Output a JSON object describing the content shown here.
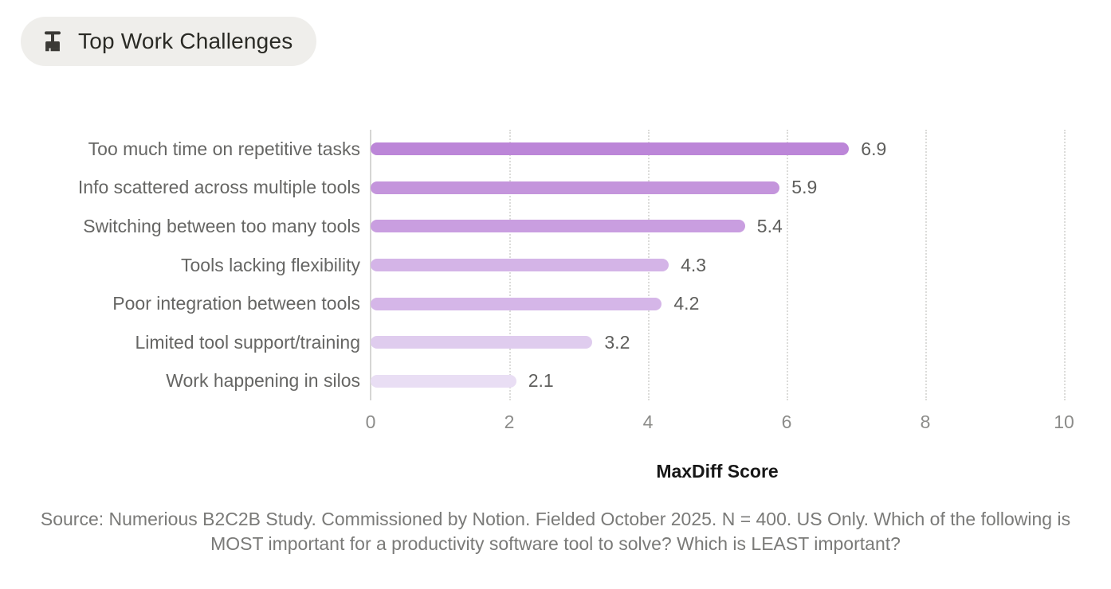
{
  "badge": {
    "label": "Top Work Challenges",
    "icon": "broom-icon"
  },
  "chart_data": {
    "type": "bar",
    "orientation": "horizontal",
    "title": "Top Work Challenges",
    "categories": [
      "Too much time on repetitive tasks",
      "Info scattered across multiple tools",
      "Switching between too many tools",
      "Tools lacking flexibility",
      "Poor integration between tools",
      "Limited tool support/training",
      "Work happening in silos"
    ],
    "values": [
      6.9,
      5.9,
      5.4,
      4.3,
      4.2,
      3.2,
      2.1
    ],
    "value_labels": [
      "6.9",
      "5.9",
      "5.4",
      "4.3",
      "4.2",
      "3.2",
      "2.1"
    ],
    "bar_colors": [
      "#bc86d8",
      "#c495dc",
      "#c99ee0",
      "#d4b4e7",
      "#d5b6e8",
      "#dfccee",
      "#e9def4"
    ],
    "xlabel": "MaxDiff Score",
    "xlim": [
      0,
      10
    ],
    "xticks": [
      0,
      2,
      4,
      6,
      8,
      10
    ],
    "grid": "dotted-vertical",
    "legend": "none"
  },
  "source_note": "Source: Numerious B2C2B Study. Commissioned by Notion. Fielded October 2025. N = 400. US Only. Which of the following is MOST important for a productivity software tool to solve? Which is LEAST important?",
  "colors": {
    "badge_background": "#efeeeb",
    "badge_text": "#2a2a25",
    "category_label": "#666664",
    "value_label": "#5e5e5c",
    "tick_label": "#8c8c8a",
    "axis_line": "#d6d6d4",
    "gridline": "#dcdcda",
    "x_title": "#171717",
    "source_text": "#7a7a78"
  }
}
